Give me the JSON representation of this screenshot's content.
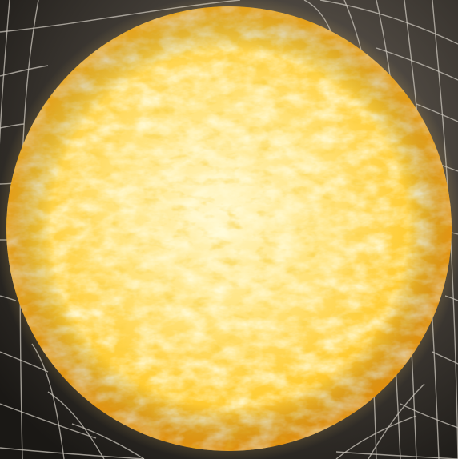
{
  "scene": {
    "subject": "star",
    "background_colors": {
      "space_light": "#6a625a",
      "space_dark": "#1a1815",
      "grid_line": "#c9c4bb"
    },
    "star_colors": {
      "core": "#fff6c8",
      "mid": "#ffd84a",
      "edge": "#f5a516",
      "granule_light": "#fff3b0",
      "granule_dark": "#f0a818"
    }
  }
}
